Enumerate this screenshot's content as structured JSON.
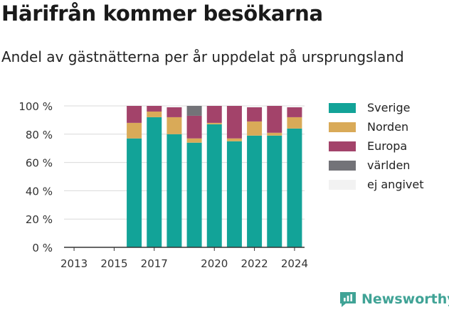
{
  "header": {
    "title": "Härifrån kommer besökarna",
    "subtitle": "Andel av gästnätterna per år uppdelat på ursprungsland"
  },
  "brand": {
    "name": "Newsworthy",
    "color": "#40a396"
  },
  "chart_data": {
    "type": "bar",
    "stacked": true,
    "categories": [
      "2013",
      "2014",
      "2015",
      "2016",
      "2017",
      "2018",
      "2019",
      "2020",
      "2021",
      "2022",
      "2023",
      "2024"
    ],
    "x_tick_labels": [
      "2013",
      "2015",
      "2017",
      "2020",
      "2022",
      "2024"
    ],
    "ylim": [
      0,
      100
    ],
    "y_ticks": [
      0,
      20,
      40,
      60,
      80,
      100
    ],
    "y_tick_labels": [
      "0 %",
      "20 %",
      "40 %",
      "60 %",
      "80 %",
      "100 %"
    ],
    "grid": true,
    "legend_position": "right",
    "series": [
      {
        "name": "Sverige",
        "color": "#12a398",
        "values": [
          null,
          null,
          null,
          77,
          92,
          80,
          74,
          87,
          75,
          79,
          79,
          84
        ]
      },
      {
        "name": "Norden",
        "color": "#d9aa58",
        "values": [
          null,
          null,
          null,
          11,
          4,
          12,
          3,
          1,
          2,
          10,
          2,
          8
        ]
      },
      {
        "name": "Europa",
        "color": "#a3436a",
        "values": [
          null,
          null,
          null,
          12,
          4,
          7,
          16,
          12,
          23,
          10,
          19,
          7
        ]
      },
      {
        "name": "världen",
        "color": "#737378",
        "values": [
          null,
          null,
          null,
          0,
          0,
          0,
          7,
          0,
          0,
          0,
          0,
          0
        ]
      },
      {
        "name": "ej angivet",
        "color": "#f2f2f2",
        "values": [
          null,
          null,
          null,
          0,
          0,
          1,
          0,
          0,
          0,
          1,
          0,
          1
        ]
      }
    ]
  }
}
